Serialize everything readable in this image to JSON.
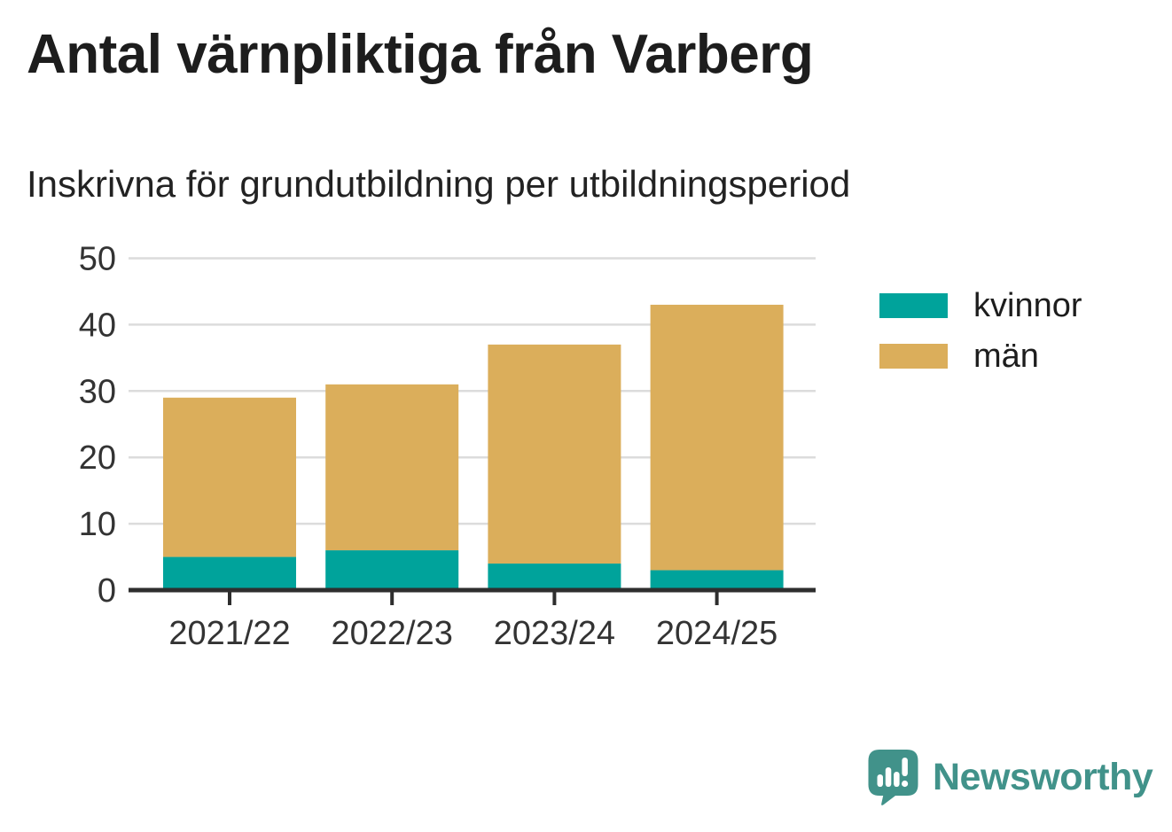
{
  "title": "Antal värnpliktiga från Varberg",
  "subtitle": "Inskrivna för grundutbildning per utbildningsperiod",
  "colors": {
    "kvinnor": "#00A39B",
    "man": "#DBAE5B",
    "axis": "#2E2E2E",
    "grid": "#DCDCDC",
    "tick_text": "#333333",
    "title_text": "#1D1D1D",
    "brand": "#41928A"
  },
  "chart_data": {
    "type": "bar",
    "stacked": true,
    "title": "Antal värnpliktiga från Varberg",
    "subtitle": "Inskrivna för grundutbildning per utbildningsperiod",
    "categories": [
      "2021/22",
      "2022/23",
      "2023/24",
      "2024/25"
    ],
    "series": [
      {
        "name": "kvinnor",
        "color": "#00A39B",
        "values": [
          5,
          6,
          4,
          3
        ]
      },
      {
        "name": "män",
        "color": "#DBAE5B",
        "values": [
          24,
          25,
          33,
          40
        ]
      }
    ],
    "totals": [
      29,
      31,
      37,
      43
    ],
    "xlabel": "",
    "ylabel": "",
    "ylim": [
      0,
      50
    ],
    "yticks": [
      0,
      10,
      20,
      30,
      40,
      50
    ],
    "grid": true,
    "legend_position": "right"
  },
  "footer": {
    "brand": "Newsworthy"
  }
}
